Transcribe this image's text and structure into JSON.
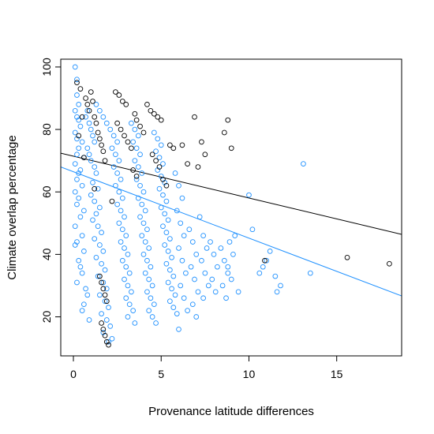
{
  "chart_data": {
    "type": "scatter",
    "title": "",
    "xlabel": "Provenance latitude differences",
    "ylabel": "Climate overlap percentage",
    "xlim": [
      -0.72,
      18.7
    ],
    "ylim": [
      7.5,
      102.5
    ],
    "x_ticks": [
      0,
      5,
      10,
      15
    ],
    "y_ticks": [
      20,
      40,
      60,
      80,
      100
    ],
    "grid": false,
    "legend": "none",
    "series": [
      {
        "color": "#1E90FF",
        "marker": "open-circle",
        "points": [
          [
            0.1,
            100
          ],
          [
            0.2,
            96
          ],
          [
            0.2,
            91
          ],
          [
            0.3,
            88
          ],
          [
            0.1,
            86
          ],
          [
            0.2,
            84
          ],
          [
            0.3,
            83
          ],
          [
            0.4,
            81
          ],
          [
            0.1,
            79
          ],
          [
            0.2,
            77
          ],
          [
            0.5,
            76
          ],
          [
            0.3,
            74
          ],
          [
            0.2,
            72
          ],
          [
            0.6,
            71
          ],
          [
            0.1,
            69
          ],
          [
            0.4,
            67
          ],
          [
            0.3,
            66
          ],
          [
            0.2,
            64
          ],
          [
            0.5,
            62
          ],
          [
            0.1,
            60
          ],
          [
            0.3,
            58
          ],
          [
            0.2,
            56
          ],
          [
            0.6,
            54
          ],
          [
            0.4,
            52
          ],
          [
            0.1,
            49
          ],
          [
            0.5,
            46
          ],
          [
            0.2,
            44
          ],
          [
            0.1,
            43
          ],
          [
            0.6,
            41
          ],
          [
            0.3,
            38
          ],
          [
            0.4,
            36
          ],
          [
            0.5,
            34
          ],
          [
            0.2,
            31
          ],
          [
            0.7,
            29
          ],
          [
            0.8,
            27
          ],
          [
            0.6,
            24
          ],
          [
            0.5,
            22
          ],
          [
            0.9,
            19
          ],
          [
            0.7,
            84
          ],
          [
            0.8,
            86
          ],
          [
            0.9,
            82
          ],
          [
            1.0,
            80
          ],
          [
            1.1,
            78
          ],
          [
            1.2,
            76
          ],
          [
            0.8,
            74
          ],
          [
            0.9,
            72
          ],
          [
            1.0,
            70
          ],
          [
            1.2,
            68
          ],
          [
            1.3,
            66
          ],
          [
            1.1,
            63
          ],
          [
            1.4,
            61
          ],
          [
            1.0,
            59
          ],
          [
            1.2,
            57
          ],
          [
            1.5,
            55
          ],
          [
            1.3,
            53
          ],
          [
            1.1,
            51
          ],
          [
            1.4,
            49
          ],
          [
            1.6,
            47
          ],
          [
            1.2,
            45
          ],
          [
            1.5,
            43
          ],
          [
            1.7,
            41
          ],
          [
            1.3,
            39
          ],
          [
            1.6,
            37
          ],
          [
            1.8,
            35
          ],
          [
            1.4,
            33
          ],
          [
            1.7,
            31
          ],
          [
            1.9,
            29
          ],
          [
            1.5,
            27
          ],
          [
            1.8,
            25
          ],
          [
            2.0,
            23
          ],
          [
            1.6,
            21
          ],
          [
            1.9,
            19
          ],
          [
            2.1,
            17
          ],
          [
            1.7,
            15
          ],
          [
            2.2,
            13
          ],
          [
            2.0,
            12
          ],
          [
            1.3,
            88
          ],
          [
            1.5,
            86
          ],
          [
            1.7,
            84
          ],
          [
            1.9,
            82
          ],
          [
            2.1,
            80
          ],
          [
            2.3,
            78
          ],
          [
            2.5,
            76
          ],
          [
            2.2,
            74
          ],
          [
            2.4,
            72
          ],
          [
            2.6,
            70
          ],
          [
            2.3,
            68
          ],
          [
            2.5,
            66
          ],
          [
            2.7,
            64
          ],
          [
            2.4,
            62
          ],
          [
            2.6,
            60
          ],
          [
            2.8,
            58
          ],
          [
            2.5,
            56
          ],
          [
            2.7,
            54
          ],
          [
            2.9,
            52
          ],
          [
            2.6,
            50
          ],
          [
            2.8,
            48
          ],
          [
            3.0,
            46
          ],
          [
            2.7,
            44
          ],
          [
            2.9,
            42
          ],
          [
            3.1,
            40
          ],
          [
            2.8,
            38
          ],
          [
            3.0,
            36
          ],
          [
            3.2,
            34
          ],
          [
            2.9,
            32
          ],
          [
            3.1,
            30
          ],
          [
            3.3,
            28
          ],
          [
            3.0,
            26
          ],
          [
            3.2,
            24
          ],
          [
            3.4,
            22
          ],
          [
            3.1,
            20
          ],
          [
            3.5,
            18
          ],
          [
            3.3,
            82
          ],
          [
            3.5,
            80
          ],
          [
            3.7,
            78
          ],
          [
            3.4,
            76
          ],
          [
            3.6,
            74
          ],
          [
            3.8,
            72
          ],
          [
            3.5,
            70
          ],
          [
            3.7,
            68
          ],
          [
            3.9,
            66
          ],
          [
            3.6,
            64
          ],
          [
            3.8,
            62
          ],
          [
            4.0,
            60
          ],
          [
            3.7,
            58
          ],
          [
            3.9,
            56
          ],
          [
            4.1,
            54
          ],
          [
            3.8,
            52
          ],
          [
            4.0,
            50
          ],
          [
            4.2,
            48
          ],
          [
            3.9,
            46
          ],
          [
            4.1,
            44
          ],
          [
            4.3,
            42
          ],
          [
            4.0,
            40
          ],
          [
            4.2,
            38
          ],
          [
            4.4,
            36
          ],
          [
            4.1,
            34
          ],
          [
            4.3,
            32
          ],
          [
            4.5,
            30
          ],
          [
            4.2,
            28
          ],
          [
            4.4,
            26
          ],
          [
            4.6,
            24
          ],
          [
            4.3,
            22
          ],
          [
            4.5,
            20
          ],
          [
            4.7,
            18
          ],
          [
            4.6,
            79
          ],
          [
            4.8,
            77
          ],
          [
            5.0,
            75
          ],
          [
            4.7,
            73
          ],
          [
            4.9,
            71
          ],
          [
            5.1,
            69
          ],
          [
            4.8,
            67
          ],
          [
            5.0,
            65
          ],
          [
            5.2,
            63
          ],
          [
            4.9,
            61
          ],
          [
            5.1,
            59
          ],
          [
            5.3,
            57
          ],
          [
            5.0,
            55
          ],
          [
            5.2,
            53
          ],
          [
            5.4,
            51
          ],
          [
            5.1,
            49
          ],
          [
            5.3,
            47
          ],
          [
            5.5,
            45
          ],
          [
            5.2,
            43
          ],
          [
            5.4,
            41
          ],
          [
            5.6,
            39
          ],
          [
            5.3,
            37
          ],
          [
            5.5,
            35
          ],
          [
            5.7,
            33
          ],
          [
            5.4,
            31
          ],
          [
            5.6,
            29
          ],
          [
            5.8,
            27
          ],
          [
            5.5,
            25
          ],
          [
            5.7,
            23
          ],
          [
            5.9,
            21
          ],
          [
            5.8,
            66
          ],
          [
            6.0,
            62
          ],
          [
            6.2,
            58
          ],
          [
            5.9,
            54
          ],
          [
            6.1,
            50
          ],
          [
            6.3,
            46
          ],
          [
            6.0,
            42
          ],
          [
            6.2,
            38
          ],
          [
            6.4,
            34
          ],
          [
            6.1,
            30
          ],
          [
            6.3,
            26
          ],
          [
            6.5,
            22
          ],
          [
            6.0,
            16
          ],
          [
            6.6,
            48
          ],
          [
            6.8,
            44
          ],
          [
            7.0,
            40
          ],
          [
            6.7,
            36
          ],
          [
            6.9,
            32
          ],
          [
            7.1,
            28
          ],
          [
            6.8,
            24
          ],
          [
            7.0,
            20
          ],
          [
            7.2,
            52
          ],
          [
            7.4,
            46
          ],
          [
            7.6,
            42
          ],
          [
            7.3,
            38
          ],
          [
            7.5,
            34
          ],
          [
            7.7,
            30
          ],
          [
            7.4,
            26
          ],
          [
            7.8,
            44
          ],
          [
            8.0,
            40
          ],
          [
            8.2,
            36
          ],
          [
            7.9,
            32
          ],
          [
            8.1,
            28
          ],
          [
            8.4,
            42
          ],
          [
            8.6,
            38
          ],
          [
            8.8,
            34
          ],
          [
            8.5,
            30
          ],
          [
            8.7,
            26
          ],
          [
            8.9,
            44
          ],
          [
            9.1,
            40
          ],
          [
            8.8,
            36
          ],
          [
            9.0,
            32
          ],
          [
            9.2,
            46
          ],
          [
            9.4,
            28
          ],
          [
            10.0,
            59
          ],
          [
            10.2,
            48
          ],
          [
            10.6,
            34
          ],
          [
            10.8,
            36
          ],
          [
            11.2,
            41
          ],
          [
            11.0,
            38
          ],
          [
            11.5,
            33
          ],
          [
            11.6,
            28
          ],
          [
            11.8,
            30
          ],
          [
            13.1,
            69
          ],
          [
            13.5,
            34
          ]
        ]
      },
      {
        "color": "#000000",
        "marker": "open-circle",
        "points": [
          [
            0.2,
            95
          ],
          [
            0.4,
            93
          ],
          [
            0.3,
            78
          ],
          [
            0.5,
            84
          ],
          [
            0.6,
            71
          ],
          [
            0.7,
            90
          ],
          [
            0.8,
            88
          ],
          [
            0.9,
            86
          ],
          [
            1.0,
            92
          ],
          [
            1.1,
            89
          ],
          [
            1.2,
            84
          ],
          [
            1.3,
            82
          ],
          [
            1.4,
            79
          ],
          [
            1.5,
            77
          ],
          [
            1.6,
            75
          ],
          [
            1.7,
            73
          ],
          [
            1.8,
            70
          ],
          [
            1.2,
            61
          ],
          [
            1.5,
            33
          ],
          [
            1.6,
            31
          ],
          [
            1.7,
            29
          ],
          [
            1.8,
            27
          ],
          [
            1.9,
            25
          ],
          [
            1.6,
            18
          ],
          [
            1.7,
            16
          ],
          [
            1.8,
            14
          ],
          [
            1.9,
            12
          ],
          [
            2.0,
            11
          ],
          [
            2.2,
            57
          ],
          [
            2.4,
            92
          ],
          [
            2.6,
            91
          ],
          [
            2.8,
            89
          ],
          [
            3.0,
            88
          ],
          [
            2.5,
            82
          ],
          [
            2.7,
            80
          ],
          [
            2.9,
            78
          ],
          [
            3.1,
            76
          ],
          [
            3.3,
            74
          ],
          [
            3.5,
            85
          ],
          [
            3.6,
            83
          ],
          [
            3.8,
            81
          ],
          [
            4.0,
            79
          ],
          [
            4.2,
            88
          ],
          [
            4.4,
            86
          ],
          [
            4.6,
            85
          ],
          [
            4.8,
            84
          ],
          [
            5.0,
            83
          ],
          [
            4.5,
            72
          ],
          [
            4.7,
            70
          ],
          [
            4.9,
            68
          ],
          [
            3.4,
            67
          ],
          [
            3.6,
            65
          ],
          [
            5.1,
            64
          ],
          [
            5.3,
            62
          ],
          [
            5.5,
            75
          ],
          [
            5.7,
            74
          ],
          [
            6.2,
            75
          ],
          [
            6.5,
            69
          ],
          [
            6.9,
            84
          ],
          [
            7.1,
            68
          ],
          [
            7.3,
            76
          ],
          [
            7.5,
            72
          ],
          [
            8.6,
            79
          ],
          [
            8.8,
            83
          ],
          [
            9.0,
            74
          ],
          [
            10.9,
            38
          ],
          [
            15.6,
            39
          ],
          [
            18.0,
            37
          ]
        ]
      }
    ],
    "regression_lines": [
      {
        "color": "#1E90FF",
        "x": [
          -0.72,
          18.7
        ],
        "y": [
          68.0,
          26.7
        ]
      },
      {
        "color": "#000000",
        "x": [
          -0.72,
          18.7
        ],
        "y": [
          72.4,
          46.4
        ]
      }
    ]
  }
}
